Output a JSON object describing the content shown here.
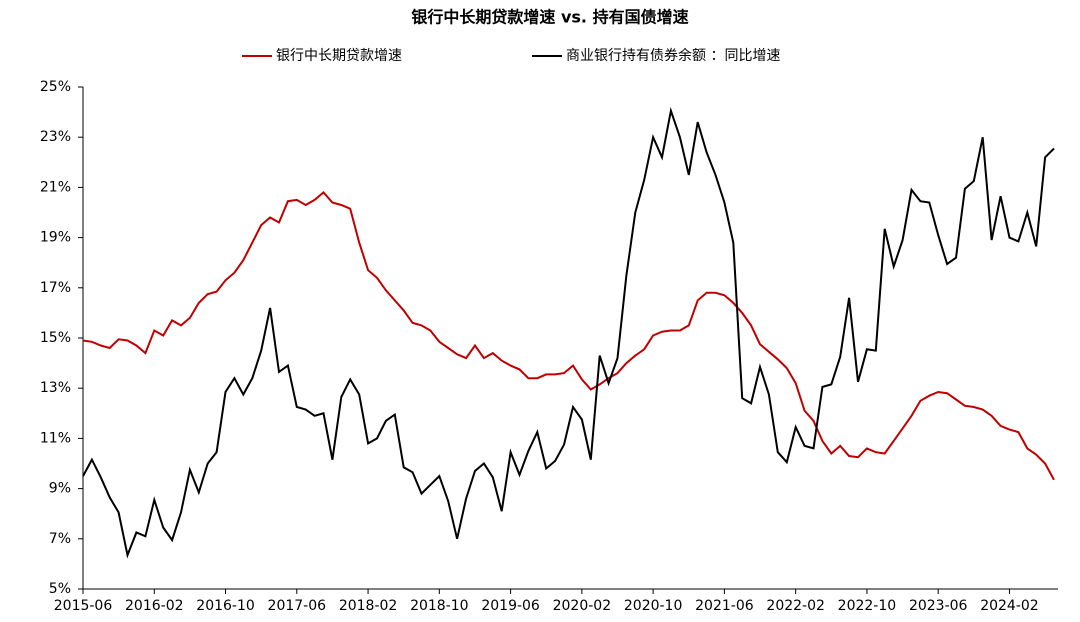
{
  "chart_data": {
    "type": "line",
    "title": "银行中长期贷款增速 vs. 持有国债增速",
    "categories": [
      "2015-06",
      null,
      null,
      null,
      null,
      null,
      null,
      null,
      "2016-02",
      null,
      null,
      null,
      null,
      null,
      null,
      null,
      "2016-10",
      null,
      null,
      null,
      null,
      null,
      null,
      null,
      "2017-06",
      null,
      null,
      null,
      null,
      null,
      null,
      null,
      "2018-02",
      null,
      null,
      null,
      null,
      null,
      null,
      null,
      "2018-10",
      null,
      null,
      null,
      null,
      null,
      null,
      null,
      "2019-06",
      null,
      null,
      null,
      null,
      null,
      null,
      null,
      "2020-02",
      null,
      null,
      null,
      null,
      null,
      null,
      null,
      "2020-10",
      null,
      null,
      null,
      null,
      null,
      null,
      null,
      "2021-06",
      null,
      null,
      null,
      null,
      null,
      null,
      null,
      "2022-02",
      null,
      null,
      null,
      null,
      null,
      null,
      null,
      "2022-10",
      null,
      null,
      null,
      null,
      null,
      null,
      null,
      "2023-06",
      null,
      null,
      null,
      null,
      null,
      null,
      null,
      "2024-02",
      null,
      null,
      null,
      null,
      null
    ],
    "series": [
      {
        "name": "银行中长期贷款增速",
        "color": "#c00000",
        "values": [
          14.9,
          14.85,
          14.7,
          14.6,
          14.95,
          14.9,
          14.7,
          14.4,
          15.3,
          15.1,
          15.7,
          15.5,
          15.8,
          16.4,
          16.75,
          16.85,
          17.3,
          17.6,
          18.1,
          18.8,
          19.5,
          19.8,
          19.6,
          20.45,
          20.5,
          20.3,
          20.5,
          20.8,
          20.4,
          20.3,
          20.15,
          18.8,
          17.7,
          17.4,
          16.9,
          16.5,
          16.1,
          15.6,
          15.5,
          15.3,
          14.85,
          14.6,
          14.35,
          14.2,
          14.7,
          14.2,
          14.4,
          14.1,
          13.9,
          13.75,
          13.4,
          13.4,
          13.55,
          13.55,
          13.6,
          13.9,
          13.35,
          12.95,
          13.15,
          13.4,
          13.6,
          14.0,
          14.3,
          14.55,
          15.1,
          15.25,
          15.3,
          15.3,
          15.5,
          16.5,
          16.8,
          16.8,
          16.7,
          16.4,
          16.0,
          15.5,
          14.75,
          14.45,
          14.15,
          13.8,
          13.2,
          12.1,
          11.7,
          10.9,
          10.4,
          10.7,
          10.3,
          10.25,
          10.6,
          10.45,
          10.4,
          10.9,
          11.4,
          11.9,
          12.5,
          12.7,
          12.85,
          12.8,
          12.55,
          12.3,
          12.25,
          12.15,
          11.9,
          11.5,
          11.35,
          11.25,
          10.6,
          10.35,
          10.0,
          9.35
        ]
      },
      {
        "name": "商业银行持有债券余额 ：同比增速",
        "color": "#000000",
        "values": [
          9.5,
          10.15,
          9.45,
          8.65,
          8.05,
          6.35,
          7.25,
          7.1,
          8.55,
          7.45,
          6.95,
          8.05,
          9.75,
          8.85,
          10.0,
          10.45,
          12.85,
          13.4,
          12.75,
          13.4,
          14.5,
          16.2,
          13.65,
          13.9,
          12.25,
          12.15,
          11.9,
          12.0,
          10.15,
          12.65,
          13.35,
          12.75,
          10.8,
          11.0,
          11.7,
          11.95,
          9.85,
          9.65,
          8.8,
          9.15,
          9.5,
          8.5,
          7.0,
          8.6,
          9.7,
          10.0,
          9.45,
          8.1,
          10.45,
          9.55,
          10.5,
          11.25,
          9.8,
          10.1,
          10.75,
          12.25,
          11.75,
          10.15,
          14.3,
          13.2,
          14.2,
          17.5,
          20.0,
          21.3,
          23.0,
          22.2,
          24.05,
          23.0,
          21.5,
          23.6,
          22.4,
          21.5,
          20.4,
          18.8,
          12.6,
          12.4,
          13.85,
          12.75,
          10.45,
          10.05,
          11.45,
          10.7,
          10.6,
          13.05,
          13.15,
          14.25,
          16.6,
          13.25,
          14.55,
          14.5,
          19.35,
          17.85,
          18.9,
          20.9,
          20.45,
          20.4,
          19.1,
          17.95,
          18.2,
          20.95,
          21.25,
          23.0,
          18.9,
          20.65,
          19.0,
          18.85,
          20.0,
          18.65,
          22.2,
          22.55
        ]
      }
    ],
    "ylim": [
      5,
      25
    ],
    "yticks": [
      {
        "value": 5,
        "label": "5%"
      },
      {
        "value": 7,
        "label": "7%"
      },
      {
        "value": 9,
        "label": "9%"
      },
      {
        "value": 11,
        "label": "11%"
      },
      {
        "value": 13,
        "label": "13%"
      },
      {
        "value": 15,
        "label": "15%"
      },
      {
        "value": 17,
        "label": "17%"
      },
      {
        "value": 19,
        "label": "19%"
      },
      {
        "value": 21,
        "label": "21%"
      },
      {
        "value": 23,
        "label": "23%"
      },
      {
        "value": 25,
        "label": "25%"
      }
    ],
    "grid": false,
    "legend": "top"
  }
}
